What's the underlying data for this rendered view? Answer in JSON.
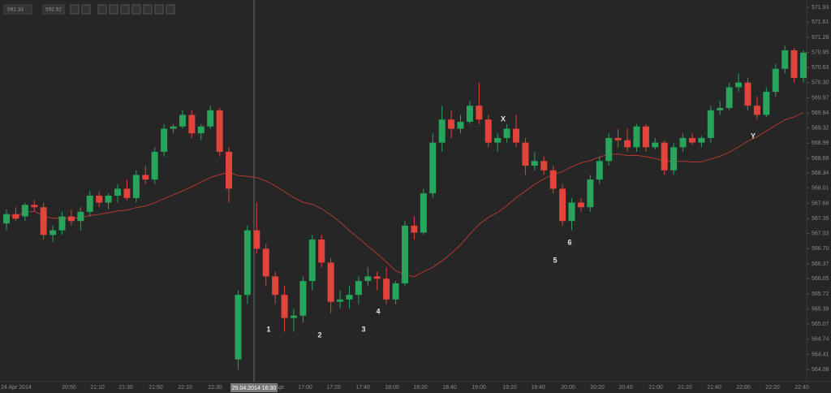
{
  "toolbar": {
    "bid": "592.33",
    "ask": "592.52"
  },
  "chart_data": {
    "type": "candlestick",
    "up_color": "#27a55d",
    "down_color": "#e2433b",
    "ma_color": "#b23a35",
    "ylim": [
      563.82,
      572.09
    ],
    "yticks": [
      571.93,
      571.61,
      571.28,
      570.95,
      570.63,
      {
        "value": 570.3,
        "label": "570.30"
      },
      569.97,
      569.64,
      569.32,
      568.99,
      568.66,
      568.34,
      568.01,
      567.68,
      567.35,
      567.03,
      {
        "value": 566.7,
        "label": "566.70"
      },
      566.37,
      566.05,
      565.72,
      565.39,
      565.07,
      564.74,
      564.41,
      564.08
    ],
    "xtick_labels": [
      "24 Apr 2014",
      "20:50",
      "21:10",
      "21:30",
      "21:50",
      "22:10",
      "22:30",
      "Apr",
      "17:00",
      "17:20",
      "17:40",
      "18:00",
      "18:20",
      "18:40",
      "19:00",
      "19:20",
      "19:40",
      "20:00",
      "20:20",
      "20:40",
      "21:00",
      "21:20",
      "21:40",
      "22:00",
      "22:20",
      "22:40"
    ],
    "crosshair_label": "25.04.2014 16:30",
    "annotations": [
      "1",
      "2",
      "3",
      "4",
      "5",
      "6",
      "X",
      "Y"
    ],
    "open": [
      567.25,
      567.45,
      567.4,
      567.65,
      567.6,
      567.0,
      567.1,
      567.4,
      567.3,
      567.5,
      567.85,
      567.7,
      567.85,
      568.0,
      567.8,
      568.3,
      568.2,
      568.8,
      569.3,
      569.35,
      569.6,
      569.2,
      569.35,
      569.7,
      568.8,
      564.3,
      565.7,
      567.1,
      566.7,
      566.1,
      565.7,
      565.2,
      565.25,
      566.0,
      566.9,
      566.4,
      565.55,
      565.6,
      565.7,
      566.0,
      566.1,
      566.05,
      565.6,
      565.95,
      567.2,
      567.05,
      567.9,
      569.0,
      569.5,
      569.3,
      569.45,
      569.8,
      569.5,
      569.0,
      569.1,
      569.3,
      569.0,
      568.5,
      568.6,
      568.4,
      568.0,
      567.3,
      567.7,
      567.6,
      568.2,
      568.6,
      569.1,
      569.05,
      568.9,
      569.35,
      568.9,
      569.0,
      568.4,
      568.9,
      569.1,
      569.0,
      569.1,
      569.7,
      569.75,
      570.2,
      570.3,
      569.8,
      569.6,
      570.1,
      570.6,
      571.0,
      570.4
    ],
    "high": [
      567.55,
      567.6,
      567.7,
      567.75,
      567.7,
      567.2,
      567.5,
      567.55,
      567.6,
      567.95,
      567.95,
      567.9,
      568.1,
      568.2,
      568.4,
      568.5,
      568.9,
      569.4,
      569.4,
      569.7,
      569.7,
      569.4,
      569.8,
      569.75,
      568.9,
      565.8,
      567.2,
      567.7,
      566.8,
      566.2,
      565.9,
      565.4,
      566.1,
      567.0,
      567.0,
      566.5,
      565.8,
      565.9,
      566.1,
      566.3,
      566.2,
      566.3,
      566.0,
      567.3,
      567.4,
      568.0,
      569.2,
      569.8,
      569.7,
      569.6,
      569.9,
      570.3,
      569.6,
      569.2,
      569.4,
      569.6,
      569.1,
      568.8,
      568.7,
      568.5,
      568.1,
      567.8,
      567.8,
      568.3,
      568.7,
      569.2,
      569.3,
      569.3,
      569.4,
      569.4,
      569.1,
      569.05,
      569.0,
      569.2,
      569.2,
      569.15,
      569.8,
      569.9,
      570.3,
      570.5,
      570.4,
      570.0,
      570.2,
      570.7,
      571.1,
      571.05,
      571.0
    ],
    "low": [
      567.1,
      567.3,
      567.3,
      567.5,
      566.9,
      566.85,
      567.0,
      567.2,
      567.1,
      567.4,
      567.6,
      567.55,
      567.7,
      567.75,
      567.7,
      568.1,
      568.1,
      568.7,
      569.2,
      569.3,
      569.1,
      569.05,
      569.3,
      568.7,
      567.7,
      564.08,
      565.5,
      566.6,
      565.9,
      565.5,
      564.9,
      564.9,
      565.1,
      565.8,
      566.3,
      565.3,
      565.4,
      565.4,
      565.5,
      565.9,
      565.8,
      565.5,
      565.5,
      565.9,
      566.9,
      567.0,
      567.8,
      568.8,
      569.1,
      569.2,
      569.4,
      569.4,
      568.9,
      568.8,
      569.0,
      568.9,
      568.3,
      568.4,
      568.3,
      567.9,
      567.2,
      567.1,
      567.5,
      567.5,
      568.1,
      568.5,
      568.9,
      568.8,
      568.8,
      568.8,
      568.85,
      568.3,
      568.3,
      568.8,
      568.95,
      568.9,
      569.0,
      569.6,
      569.7,
      570.1,
      569.7,
      569.5,
      569.55,
      570.0,
      570.5,
      570.3,
      570.3
    ],
    "close": [
      567.45,
      567.35,
      567.65,
      567.6,
      567.0,
      567.1,
      567.4,
      567.3,
      567.5,
      567.85,
      567.7,
      567.85,
      568.0,
      567.8,
      568.3,
      568.2,
      568.8,
      569.3,
      569.35,
      569.6,
      569.2,
      569.35,
      569.7,
      568.8,
      568.0,
      565.7,
      567.1,
      566.7,
      566.1,
      565.7,
      565.2,
      565.25,
      566.0,
      566.9,
      566.4,
      565.55,
      565.6,
      565.7,
      566.0,
      566.1,
      566.05,
      565.6,
      565.95,
      567.2,
      567.05,
      567.9,
      569.0,
      569.5,
      569.3,
      569.45,
      569.8,
      569.5,
      569.0,
      569.1,
      569.3,
      569.0,
      568.5,
      568.6,
      568.4,
      568.0,
      567.3,
      567.7,
      567.6,
      568.2,
      568.6,
      569.1,
      569.05,
      568.9,
      569.35,
      568.9,
      569.0,
      568.4,
      568.9,
      569.1,
      569.0,
      569.1,
      569.7,
      569.75,
      570.2,
      570.3,
      569.8,
      569.6,
      570.1,
      570.6,
      571.0,
      570.4,
      570.95
    ]
  }
}
